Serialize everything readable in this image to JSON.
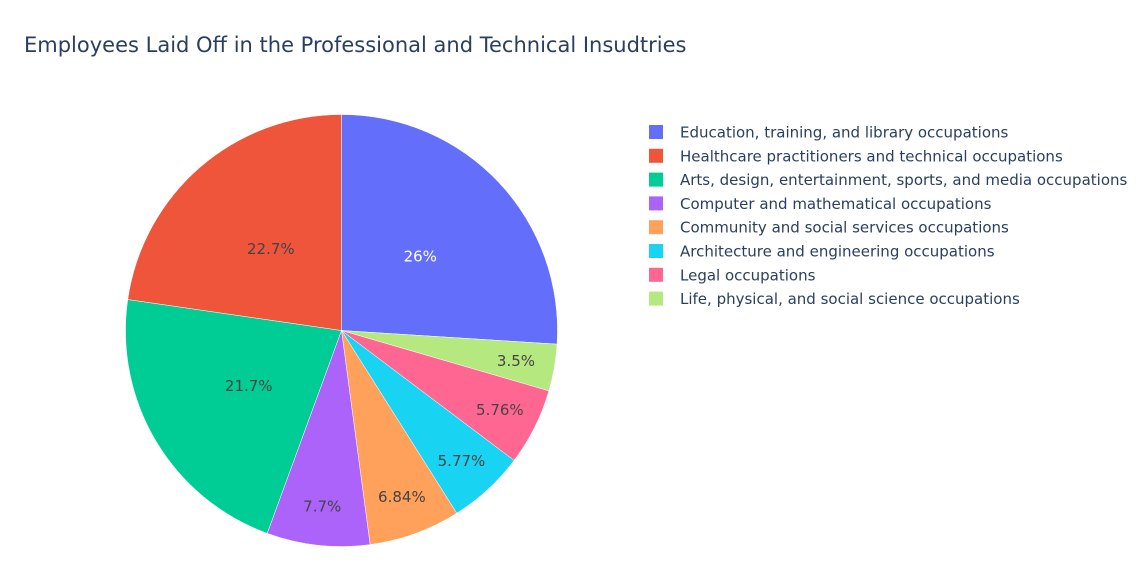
{
  "chart_data": {
    "type": "pie",
    "title": "Employees Laid Off in the Professional and Technical Insudtries",
    "legend_position": "right",
    "slices": [
      {
        "label": "Education, training, and library occupations",
        "value": 26,
        "display": "26%",
        "color": "#636efa",
        "text_color": "#ffffff"
      },
      {
        "label": "Life, physical, and social science occupations",
        "value": 3.5,
        "display": "3.5%",
        "color": "#b6e880",
        "text_color": "#444444"
      },
      {
        "label": "Legal occupations",
        "value": 5.76,
        "display": "5.76%",
        "color": "#ff6692",
        "text_color": "#444444"
      },
      {
        "label": "Architecture and engineering occupations",
        "value": 5.77,
        "display": "5.77%",
        "color": "#19d3f3",
        "text_color": "#444444"
      },
      {
        "label": "Community and social services occupations",
        "value": 6.84,
        "display": "6.84%",
        "color": "#ffa15a",
        "text_color": "#444444"
      },
      {
        "label": "Computer and mathematical occupations",
        "value": 7.7,
        "display": "7.7%",
        "color": "#ab63fa",
        "text_color": "#444444"
      },
      {
        "label": "Arts, design, entertainment, sports, and media occupations",
        "value": 21.7,
        "display": "21.7%",
        "color": "#00cc96",
        "text_color": "#444444"
      },
      {
        "label": "Healthcare practitioners and technical occupations",
        "value": 22.7,
        "display": "22.7%",
        "color": "#ef553b",
        "text_color": "#444444"
      }
    ],
    "legend_order": [
      "Education, training, and library occupations",
      "Healthcare practitioners and technical occupations",
      "Arts, design, entertainment, sports, and media occupations",
      "Computer and mathematical occupations",
      "Community and social services occupations",
      "Architecture and engineering occupations",
      "Legal occupations",
      "Life, physical, and social science occupations"
    ]
  }
}
